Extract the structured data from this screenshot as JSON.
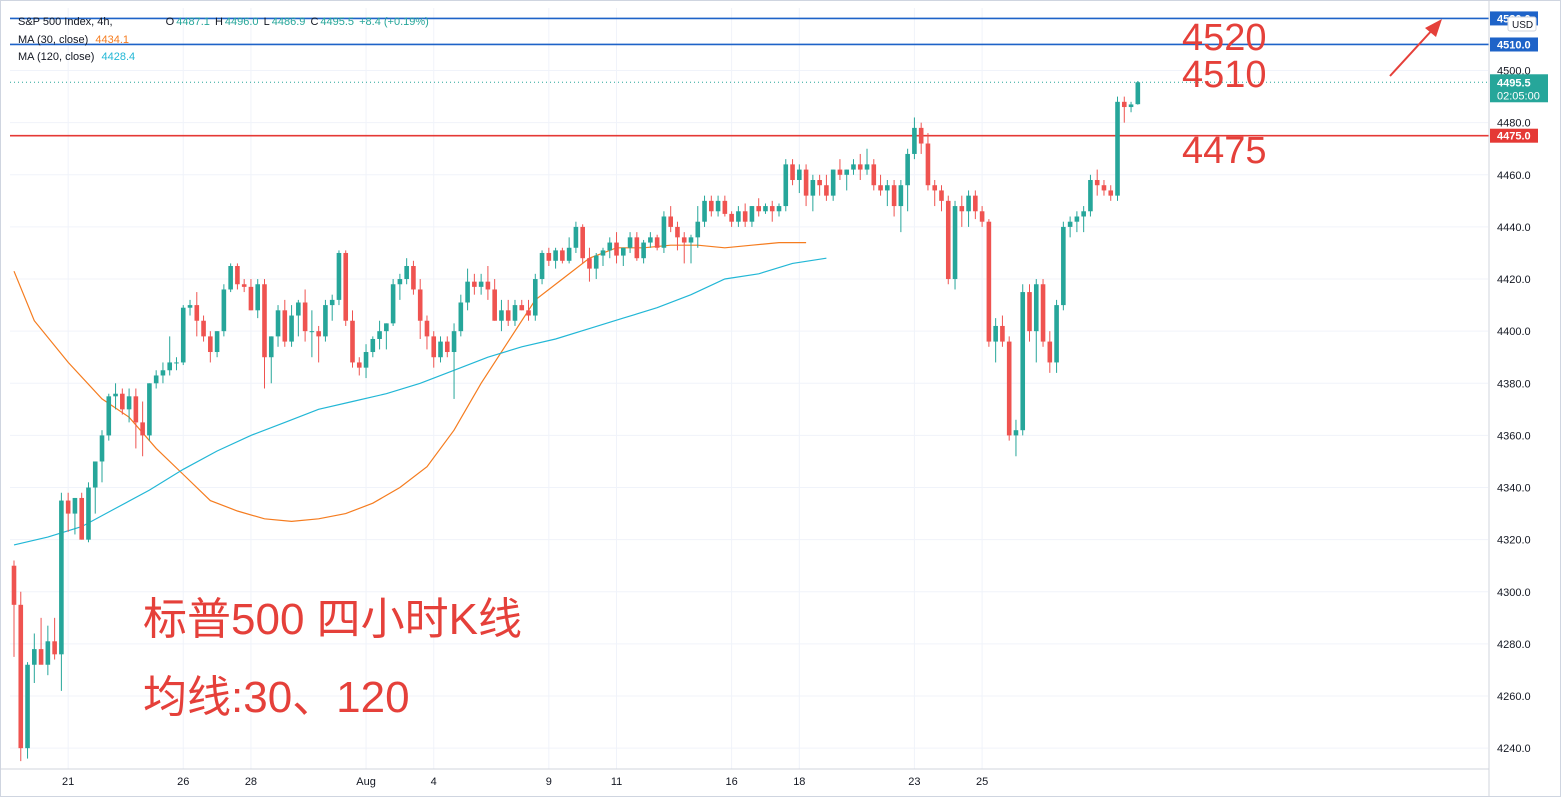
{
  "header": {
    "symbol": "S&P 500 Index, 4h,",
    "ohlc": [
      {
        "label": "O",
        "value": "4487.1"
      },
      {
        "label": "H",
        "value": "4496.0"
      },
      {
        "label": "L",
        "value": "4486.9"
      },
      {
        "label": "C",
        "value": "4495.5"
      }
    ],
    "change": "+8.4 (+0.19%)",
    "ma30_label": "MA (30, close)",
    "ma30_value": "4434.1",
    "ma120_label": "MA (120, close)",
    "ma120_value": "4428.4"
  },
  "price_axis": {
    "currency": "USD",
    "ticks": [
      "4240.0",
      "4260.0",
      "4280.0",
      "4300.0",
      "4320.0",
      "4340.0",
      "4360.0",
      "4380.0",
      "4400.0",
      "4420.0",
      "4440.0",
      "4460.0",
      "4480.0",
      "4500.0"
    ],
    "last_price": "4495.5",
    "countdown": "02:05:00"
  },
  "time_axis": {
    "ticks": [
      "21",
      "26",
      "28",
      "Aug",
      "4",
      "9",
      "11",
      "16",
      "18",
      "23",
      "25"
    ]
  },
  "levels": [
    {
      "value": 4520,
      "label": "4520.0",
      "color": "#1e63c8"
    },
    {
      "value": 4510,
      "label": "4510.0",
      "color": "#1e63c8"
    },
    {
      "value": 4475,
      "label": "4475.0",
      "color": "#e53935"
    }
  ],
  "annotations": {
    "level_4520": "4520",
    "level_4510": "4510",
    "level_4475": "4475",
    "title_cn": "标普500 四小时K线",
    "ma_cn": "均线:30、120"
  },
  "colors": {
    "up": "#26a69a",
    "down": "#ef5350",
    "ma30": "#f57c1f",
    "ma120": "#22b7d6",
    "annotation": "#e5403a"
  },
  "chart_data": {
    "type": "candlestick",
    "symbol": "S&P 500 Index",
    "interval": "4h",
    "ylim": [
      4232,
      4524
    ],
    "x_ticks": [
      {
        "label": "21",
        "index": 8
      },
      {
        "label": "26",
        "index": 25
      },
      {
        "label": "28",
        "index": 35
      },
      {
        "label": "Aug",
        "index": 52
      },
      {
        "label": "4",
        "index": 62
      },
      {
        "label": "9",
        "index": 79
      },
      {
        "label": "11",
        "index": 89
      },
      {
        "label": "16",
        "index": 106
      },
      {
        "label": "18",
        "index": 116
      },
      {
        "label": "23",
        "index": 133
      },
      {
        "label": "25",
        "index": 143
      }
    ],
    "candles": [
      [
        4310,
        4312,
        4275,
        4295
      ],
      [
        4295,
        4300,
        4235,
        4240
      ],
      [
        4240,
        4273,
        4236,
        4272
      ],
      [
        4272,
        4284,
        4265,
        4278
      ],
      [
        4278,
        4290,
        4273,
        4272
      ],
      [
        4272,
        4287,
        4268,
        4281
      ],
      [
        4281,
        4290,
        4274,
        4276
      ],
      [
        4276,
        4338,
        4262,
        4335
      ],
      [
        4335,
        4338,
        4323,
        4330
      ],
      [
        4330,
        4336,
        4322,
        4336
      ],
      [
        4336,
        4338,
        4320,
        4320
      ],
      [
        4320,
        4342,
        4319,
        4340
      ],
      [
        4340,
        4350,
        4330,
        4350
      ],
      [
        4350,
        4362,
        4342,
        4360
      ],
      [
        4360,
        4376,
        4358,
        4375
      ],
      [
        4375,
        4380,
        4370,
        4376
      ],
      [
        4376,
        4378,
        4368,
        4370
      ],
      [
        4370,
        4378,
        4365,
        4375
      ],
      [
        4375,
        4378,
        4355,
        4365
      ],
      [
        4365,
        4373,
        4352,
        4360
      ],
      [
        4360,
        4380,
        4358,
        4380
      ],
      [
        4380,
        4385,
        4378,
        4383
      ],
      [
        4383,
        4388,
        4380,
        4385
      ],
      [
        4385,
        4398,
        4383,
        4388
      ],
      [
        4388,
        4390,
        4385,
        4388
      ],
      [
        4388,
        4410,
        4387,
        4409
      ],
      [
        4409,
        4412,
        4406,
        4410
      ],
      [
        4410,
        4415,
        4398,
        4404
      ],
      [
        4404,
        4406,
        4396,
        4398
      ],
      [
        4398,
        4400,
        4388,
        4392
      ],
      [
        4392,
        4400,
        4390,
        4400
      ],
      [
        4400,
        4418,
        4398,
        4416
      ],
      [
        4416,
        4426,
        4415,
        4425
      ],
      [
        4425,
        4426,
        4416,
        4418
      ],
      [
        4418,
        4420,
        4415,
        4417
      ],
      [
        4417,
        4420,
        4408,
        4408
      ],
      [
        4408,
        4420,
        4405,
        4418
      ],
      [
        4418,
        4420,
        4378,
        4390
      ],
      [
        4390,
        4398,
        4380,
        4398
      ],
      [
        4398,
        4410,
        4394,
        4408
      ],
      [
        4408,
        4412,
        4394,
        4396
      ],
      [
        4396,
        4410,
        4394,
        4406
      ],
      [
        4406,
        4412,
        4398,
        4411
      ],
      [
        4411,
        4416,
        4396,
        4400
      ],
      [
        4400,
        4408,
        4390,
        4400
      ],
      [
        4400,
        4402,
        4388,
        4398
      ],
      [
        4398,
        4412,
        4396,
        4410
      ],
      [
        4410,
        4414,
        4404,
        4412
      ],
      [
        4412,
        4431,
        4410,
        4430
      ],
      [
        4430,
        4431,
        4402,
        4404
      ],
      [
        4404,
        4408,
        4386,
        4388
      ],
      [
        4388,
        4390,
        4383,
        4386
      ],
      [
        4386,
        4395,
        4382,
        4392
      ],
      [
        4392,
        4398,
        4390,
        4397
      ],
      [
        4397,
        4404,
        4393,
        4400
      ],
      [
        4400,
        4403,
        4393,
        4403
      ],
      [
        4403,
        4420,
        4402,
        4418
      ],
      [
        4418,
        4422,
        4412,
        4420
      ],
      [
        4420,
        4428,
        4418,
        4425
      ],
      [
        4425,
        4427,
        4414,
        4416
      ],
      [
        4416,
        4420,
        4397,
        4404
      ],
      [
        4404,
        4406,
        4393,
        4398
      ],
      [
        4398,
        4400,
        4386,
        4390
      ],
      [
        4390,
        4398,
        4388,
        4396
      ],
      [
        4396,
        4398,
        4390,
        4392
      ],
      [
        4392,
        4403,
        4374,
        4400
      ],
      [
        4400,
        4414,
        4398,
        4411
      ],
      [
        4411,
        4424,
        4408,
        4419
      ],
      [
        4419,
        4422,
        4414,
        4417
      ],
      [
        4417,
        4422,
        4414,
        4419
      ],
      [
        4419,
        4425,
        4412,
        4416
      ],
      [
        4416,
        4420,
        4404,
        4404
      ],
      [
        4404,
        4412,
        4400,
        4408
      ],
      [
        4408,
        4412,
        4402,
        4404
      ],
      [
        4404,
        4412,
        4402,
        4410
      ],
      [
        4410,
        4412,
        4408,
        4408
      ],
      [
        4408,
        4412,
        4404,
        4406
      ],
      [
        4406,
        4422,
        4404,
        4420
      ],
      [
        4420,
        4431,
        4418,
        4430
      ],
      [
        4430,
        4432,
        4425,
        4427
      ],
      [
        4427,
        4432,
        4424,
        4431
      ],
      [
        4431,
        4432,
        4426,
        4427
      ],
      [
        4427,
        4436,
        4426,
        4432
      ],
      [
        4432,
        4442,
        4430,
        4440
      ],
      [
        4440,
        4441,
        4426,
        4428
      ],
      [
        4428,
        4432,
        4419,
        4424
      ],
      [
        4424,
        4430,
        4420,
        4429
      ],
      [
        4429,
        4432,
        4425,
        4431
      ],
      [
        4431,
        4436,
        4428,
        4434
      ],
      [
        4434,
        4438,
        4426,
        4429
      ],
      [
        4429,
        4432,
        4425,
        4432
      ],
      [
        4432,
        4438,
        4430,
        4436
      ],
      [
        4436,
        4438,
        4427,
        4428
      ],
      [
        4428,
        4435,
        4426,
        4434
      ],
      [
        4434,
        4438,
        4432,
        4436
      ],
      [
        4436,
        4437,
        4431,
        4432
      ],
      [
        4432,
        4446,
        4430,
        4444
      ],
      [
        4444,
        4448,
        4438,
        4440
      ],
      [
        4440,
        4442,
        4431,
        4436
      ],
      [
        4436,
        4438,
        4426,
        4434
      ],
      [
        4434,
        4437,
        4426,
        4436
      ],
      [
        4436,
        4448,
        4432,
        4442
      ],
      [
        4442,
        4452,
        4440,
        4450
      ],
      [
        4450,
        4452,
        4444,
        4446
      ],
      [
        4446,
        4452,
        4444,
        4450
      ],
      [
        4450,
        4452,
        4444,
        4445
      ],
      [
        4445,
        4446,
        4440,
        4442
      ],
      [
        4442,
        4448,
        4440,
        4446
      ],
      [
        4446,
        4449,
        4440,
        4442
      ],
      [
        4442,
        4448,
        4440,
        4448
      ],
      [
        4448,
        4451,
        4444,
        4446
      ],
      [
        4446,
        4449,
        4445,
        4448
      ],
      [
        4448,
        4450,
        4442,
        4446
      ],
      [
        4446,
        4449,
        4444,
        4448
      ],
      [
        4448,
        4466,
        4446,
        4464
      ],
      [
        4464,
        4466,
        4456,
        4458
      ],
      [
        4458,
        4464,
        4453,
        4462
      ],
      [
        4462,
        4464,
        4448,
        4452
      ],
      [
        4452,
        4460,
        4446,
        4458
      ],
      [
        4458,
        4460,
        4452,
        4456
      ],
      [
        4456,
        4460,
        4450,
        4452
      ],
      [
        4452,
        4462,
        4450,
        4462
      ],
      [
        4462,
        4466,
        4458,
        4460
      ],
      [
        4460,
        4462,
        4454,
        4462
      ],
      [
        4462,
        4466,
        4460,
        4464
      ],
      [
        4464,
        4468,
        4458,
        4462
      ],
      [
        4462,
        4470,
        4460,
        4464
      ],
      [
        4464,
        4466,
        4454,
        4456
      ],
      [
        4456,
        4460,
        4452,
        4454
      ],
      [
        4454,
        4458,
        4448,
        4456
      ],
      [
        4456,
        4458,
        4444,
        4448
      ],
      [
        4448,
        4458,
        4438,
        4456
      ],
      [
        4456,
        4470,
        4446,
        4468
      ],
      [
        4468,
        4482,
        4466,
        4478
      ],
      [
        4478,
        4480,
        4468,
        4472
      ],
      [
        4472,
        4476,
        4454,
        4456
      ],
      [
        4456,
        4458,
        4448,
        4454
      ],
      [
        4454,
        4456,
        4446,
        4450
      ],
      [
        4450,
        4452,
        4418,
        4420
      ],
      [
        4420,
        4450,
        4416,
        4448
      ],
      [
        4448,
        4452,
        4440,
        4446
      ],
      [
        4446,
        4454,
        4440,
        4452
      ],
      [
        4452,
        4454,
        4443,
        4446
      ],
      [
        4446,
        4448,
        4440,
        4442
      ],
      [
        4442,
        4443,
        4394,
        4396
      ],
      [
        4396,
        4405,
        4388,
        4402
      ],
      [
        4402,
        4406,
        4394,
        4396
      ],
      [
        4396,
        4398,
        4358,
        4360
      ],
      [
        4360,
        4366,
        4352,
        4362
      ],
      [
        4362,
        4418,
        4360,
        4415
      ],
      [
        4415,
        4418,
        4396,
        4400
      ],
      [
        4400,
        4420,
        4388,
        4418
      ],
      [
        4418,
        4420,
        4394,
        4396
      ],
      [
        4396,
        4400,
        4384,
        4388
      ],
      [
        4388,
        4412,
        4384,
        4410
      ],
      [
        4410,
        4442,
        4408,
        4440
      ],
      [
        4440,
        4444,
        4436,
        4442
      ],
      [
        4442,
        4446,
        4438,
        4444
      ],
      [
        4444,
        4448,
        4438,
        4446
      ],
      [
        4446,
        4460,
        4444,
        4458
      ],
      [
        4458,
        4462,
        4452,
        4456
      ],
      [
        4456,
        4458,
        4452,
        4454
      ],
      [
        4454,
        4456,
        4450,
        4452
      ],
      [
        4452,
        4490,
        4450,
        4488
      ],
      [
        4488,
        4490,
        4480,
        4486
      ],
      [
        4486,
        4488,
        4484,
        4487
      ],
      [
        4487.1,
        4496.0,
        4486.9,
        4495.5
      ]
    ],
    "series": [
      {
        "name": "MA (30, close)",
        "last": 4434.1,
        "points": [
          [
            0,
            4423
          ],
          [
            3,
            4404
          ],
          [
            8,
            4388
          ],
          [
            13,
            4374
          ],
          [
            17,
            4367
          ],
          [
            21,
            4355
          ],
          [
            25,
            4345
          ],
          [
            29,
            4335
          ],
          [
            33,
            4331
          ],
          [
            37,
            4328
          ],
          [
            41,
            4327
          ],
          [
            45,
            4328
          ],
          [
            49,
            4330
          ],
          [
            53,
            4334
          ],
          [
            57,
            4340
          ],
          [
            61,
            4348
          ],
          [
            65,
            4362
          ],
          [
            69,
            4380
          ],
          [
            73,
            4396
          ],
          [
            77,
            4412
          ],
          [
            81,
            4420
          ],
          [
            85,
            4428
          ],
          [
            89,
            4432
          ],
          [
            93,
            4432
          ],
          [
            97,
            4433
          ],
          [
            101,
            4433
          ],
          [
            105,
            4432
          ],
          [
            109,
            4433
          ],
          [
            113,
            4434
          ],
          [
            117,
            4434
          ]
        ]
      },
      {
        "name": "MA (120, close)",
        "last": 4428.4,
        "points": [
          [
            0,
            4318
          ],
          [
            5,
            4321
          ],
          [
            10,
            4325
          ],
          [
            15,
            4332
          ],
          [
            20,
            4339
          ],
          [
            25,
            4347
          ],
          [
            30,
            4354
          ],
          [
            35,
            4360
          ],
          [
            40,
            4365
          ],
          [
            45,
            4370
          ],
          [
            50,
            4373
          ],
          [
            55,
            4376
          ],
          [
            60,
            4380
          ],
          [
            65,
            4385
          ],
          [
            70,
            4390
          ],
          [
            75,
            4394
          ],
          [
            80,
            4397
          ],
          [
            85,
            4401
          ],
          [
            90,
            4405
          ],
          [
            95,
            4409
          ],
          [
            100,
            4414
          ],
          [
            105,
            4420
          ],
          [
            110,
            4422
          ],
          [
            115,
            4426
          ],
          [
            120,
            4428
          ]
        ]
      }
    ]
  }
}
